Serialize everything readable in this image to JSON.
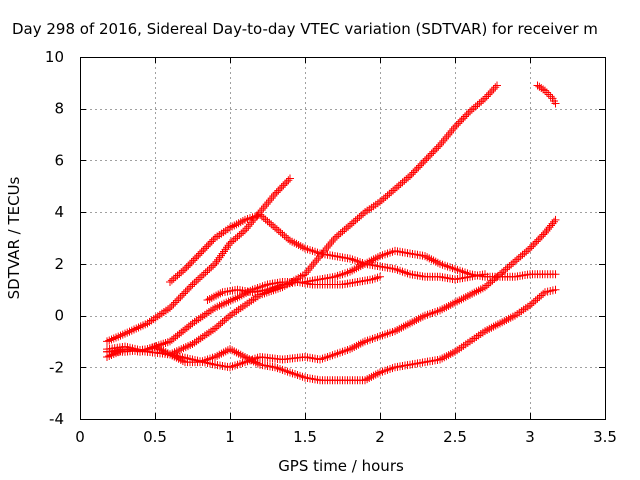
{
  "chart_data": {
    "type": "scatter",
    "title": "Day 298 of 2016, Sidereal Day-to-day VTEC variation (SDTVAR) for receiver m",
    "xlabel": "GPS time / hours",
    "ylabel": "SDTVAR / TECUs",
    "xlim": [
      0,
      3.5
    ],
    "ylim": [
      -4,
      10
    ],
    "xticks": [
      "0",
      "0.5",
      "1",
      "1.5",
      "2",
      "2.5",
      "3",
      "3.5"
    ],
    "yticks": [
      "-4",
      "-2",
      "0",
      "2",
      "4",
      "6",
      "8",
      "10"
    ],
    "grid": true,
    "marker": "plus",
    "color": "#ff0000",
    "series": [
      {
        "x": [
          0.18,
          0.3,
          0.45,
          0.6,
          0.75,
          0.9,
          1.0,
          1.1,
          1.2,
          1.3,
          1.4
        ],
        "y": [
          -1.0,
          -0.7,
          -0.3,
          0.3,
          1.2,
          2.0,
          2.8,
          3.3,
          4.0,
          4.7,
          5.3
        ]
      },
      {
        "x": [
          0.18,
          0.3,
          0.45,
          0.6,
          0.75,
          0.9,
          1.0,
          1.1,
          1.2,
          1.35,
          1.5,
          1.6,
          1.7,
          1.8,
          1.9,
          2.0,
          2.1,
          2.2,
          2.3,
          2.4,
          2.5,
          2.6,
          2.7,
          2.78
        ],
        "y": [
          -1.3,
          -1.2,
          -1.4,
          -1.5,
          -1.1,
          -0.5,
          0.0,
          0.4,
          0.8,
          1.1,
          1.6,
          2.3,
          3.0,
          3.5,
          4.0,
          4.4,
          4.9,
          5.4,
          6.0,
          6.6,
          7.3,
          7.9,
          8.4,
          8.9
        ]
      },
      {
        "x": [
          0.18,
          0.3,
          0.45,
          0.6,
          0.75,
          0.9,
          1.0,
          1.1,
          1.2,
          1.35,
          1.5,
          1.6,
          1.7,
          1.8,
          1.9,
          2.0,
          2.1,
          2.2,
          2.3,
          2.4,
          2.5,
          2.6,
          2.7,
          2.8,
          2.9,
          3.0,
          3.1,
          3.17
        ],
        "y": [
          -1.6,
          -1.3,
          -1.4,
          -1.5,
          -1.7,
          -1.9,
          -2.0,
          -1.8,
          -1.6,
          -1.7,
          -1.6,
          -1.7,
          -1.5,
          -1.3,
          -1.0,
          -0.8,
          -0.6,
          -0.3,
          0.0,
          0.2,
          0.5,
          0.8,
          1.1,
          1.6,
          2.1,
          2.6,
          3.2,
          3.7
        ]
      },
      {
        "x": [
          0.18,
          0.3,
          0.4,
          0.5,
          0.6,
          0.7,
          0.8,
          0.9,
          1.0,
          1.1,
          1.2,
          1.3,
          1.4,
          1.5,
          1.6,
          1.7,
          1.8,
          1.9,
          2.0,
          2.1,
          2.2,
          2.3,
          2.4,
          2.5,
          2.6,
          2.7,
          2.8,
          2.9,
          3.0,
          3.1,
          3.17
        ],
        "y": [
          -1.4,
          -1.3,
          -1.4,
          -1.2,
          -1.5,
          -1.8,
          -1.8,
          -1.6,
          -1.3,
          -1.6,
          -1.9,
          -2.0,
          -2.2,
          -2.4,
          -2.5,
          -2.5,
          -2.5,
          -2.5,
          -2.2,
          -2.0,
          -1.9,
          -1.8,
          -1.7,
          -1.4,
          -1.0,
          -0.6,
          -0.3,
          0.0,
          0.4,
          0.9,
          1.0
        ]
      },
      {
        "x": [
          0.85,
          0.95,
          1.05,
          1.15,
          1.25,
          1.35,
          1.45,
          1.55,
          1.65,
          1.75,
          1.85,
          1.95,
          2.0
        ],
        "y": [
          0.6,
          0.9,
          1.0,
          0.9,
          1.0,
          1.2,
          1.3,
          1.2,
          1.2,
          1.2,
          1.3,
          1.4,
          1.5
        ]
      },
      {
        "x": [
          0.18,
          0.3,
          0.45,
          0.6,
          0.75,
          0.9,
          1.05,
          1.15,
          1.25,
          1.35,
          1.5,
          1.6,
          1.7,
          1.8,
          1.9,
          2.0,
          2.1,
          2.2,
          2.3,
          2.4,
          2.5,
          2.6,
          2.7,
          2.8,
          2.9,
          3.0,
          3.1,
          3.17
        ],
        "y": [
          -1.4,
          -1.4,
          -1.3,
          -1.0,
          -0.3,
          0.3,
          0.7,
          1.0,
          1.2,
          1.3,
          1.3,
          1.4,
          1.5,
          1.7,
          2.0,
          2.3,
          2.5,
          2.4,
          2.3,
          2.0,
          1.8,
          1.6,
          1.5,
          1.5,
          1.5,
          1.6,
          1.6,
          1.6
        ]
      },
      {
        "x": [
          0.6,
          0.7,
          0.8,
          0.9,
          1.0,
          1.1,
          1.2,
          1.3,
          1.4,
          1.5,
          1.6,
          1.7,
          1.8,
          1.9,
          2.0,
          2.1,
          2.2,
          2.3,
          2.4,
          2.5,
          2.6,
          2.7
        ],
        "y": [
          1.3,
          1.8,
          2.4,
          3.0,
          3.4,
          3.7,
          3.9,
          3.4,
          2.9,
          2.6,
          2.4,
          2.3,
          2.2,
          2.0,
          1.9,
          1.8,
          1.6,
          1.5,
          1.5,
          1.4,
          1.5,
          1.6
        ]
      },
      {
        "x": [
          3.05,
          3.1,
          3.15,
          3.17
        ],
        "y": [
          8.9,
          8.7,
          8.4,
          8.2
        ]
      }
    ]
  }
}
